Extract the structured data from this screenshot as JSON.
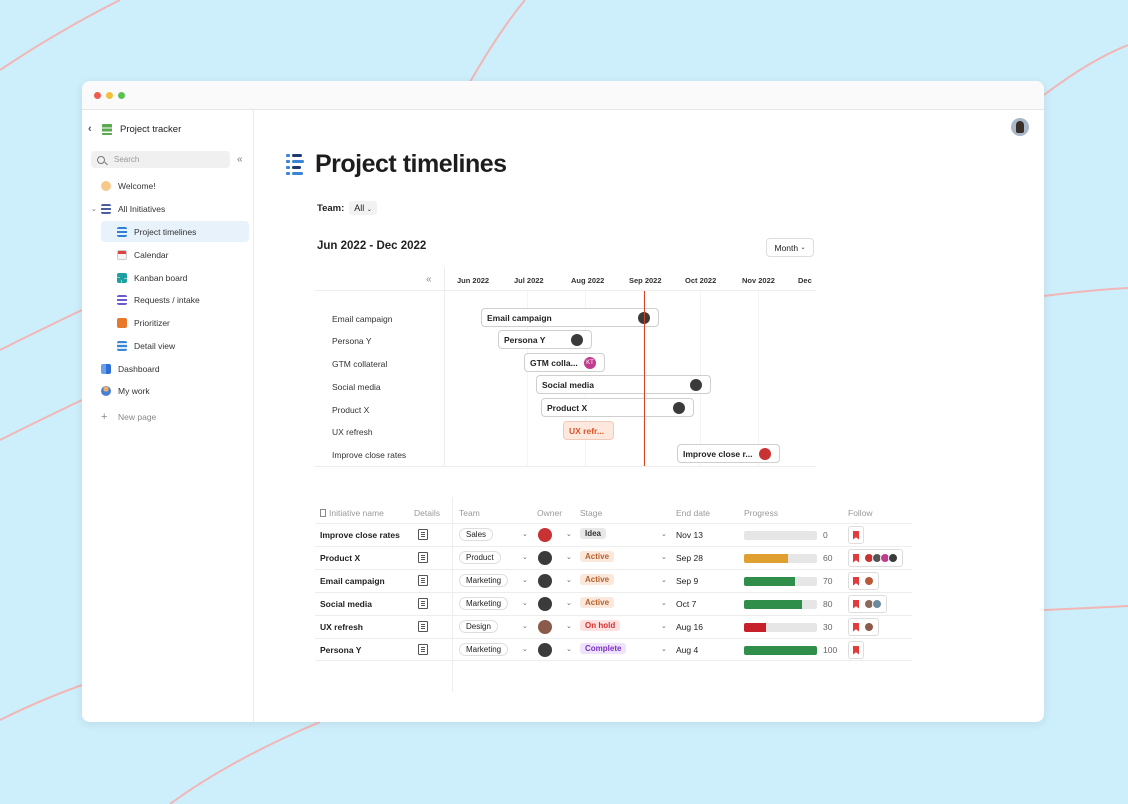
{
  "sidebar": {
    "title": "Project tracker",
    "search_placeholder": "Search",
    "items": [
      {
        "label": "Welcome!"
      },
      {
        "label": "All Initiatives"
      },
      {
        "label": "Project timelines"
      },
      {
        "label": "Calendar"
      },
      {
        "label": "Kanban board"
      },
      {
        "label": "Requests / intake"
      },
      {
        "label": "Prioritizer"
      },
      {
        "label": "Detail view"
      },
      {
        "label": "Dashboard"
      },
      {
        "label": "My work"
      },
      {
        "label": "New page"
      }
    ]
  },
  "page": {
    "title": "Project timelines",
    "team_label": "Team:",
    "team_value": "All",
    "range": "Jun 2022 - Dec 2022",
    "view_mode": "Month"
  },
  "timeline": {
    "months": [
      "Jun 2022",
      "Jul 2022",
      "Aug 2022",
      "Sep 2022",
      "Oct 2022",
      "Nov 2022",
      "Dec"
    ],
    "rows": [
      {
        "label": "Email campaign",
        "bar": "Email campaign"
      },
      {
        "label": "Persona Y",
        "bar": "Persona Y"
      },
      {
        "label": "GTM collateral",
        "bar": "GTM colla...",
        "owner_initials": "KT"
      },
      {
        "label": "Social media",
        "bar": "Social media"
      },
      {
        "label": "Product X",
        "bar": "Product X"
      },
      {
        "label": "UX refresh",
        "bar": "UX refr..."
      },
      {
        "label": "Improve close rates",
        "bar": "Improve close r..."
      }
    ]
  },
  "table": {
    "headers": {
      "name": "Initiative name",
      "details": "Details",
      "team": "Team",
      "owner": "Owner",
      "stage": "Stage",
      "end": "End date",
      "progress": "Progress",
      "follow": "Follow"
    },
    "rows": [
      {
        "name": "Improve close rates",
        "team": "Sales",
        "stage": "Idea",
        "end": "Nov 13",
        "progress": 0
      },
      {
        "name": "Product X",
        "team": "Product",
        "stage": "Active",
        "end": "Sep 28",
        "progress": 60
      },
      {
        "name": "Email campaign",
        "team": "Marketing",
        "stage": "Active",
        "end": "Sep 9",
        "progress": 70
      },
      {
        "name": "Social media",
        "team": "Marketing",
        "stage": "Active",
        "end": "Oct 7",
        "progress": 80
      },
      {
        "name": "UX refresh",
        "team": "Design",
        "stage": "On hold",
        "end": "Aug 16",
        "progress": 30
      },
      {
        "name": "Persona Y",
        "team": "Marketing",
        "stage": "Complete",
        "end": "Aug 4",
        "progress": 100
      }
    ]
  },
  "colors": {
    "background": "#cdeefb",
    "today_line": "#d4451f",
    "progress_orange": "#e0a030",
    "progress_green": "#2f8f4a",
    "progress_red": "#c8202a",
    "stage_active_bg": "#fbe8dc",
    "stage_active_fg": "#b8612c",
    "stage_onhold_bg": "#fde0e0",
    "stage_onhold_fg": "#d43030",
    "stage_complete_bg": "#efe3fb",
    "stage_complete_fg": "#7a32c0",
    "stage_idea_bg": "#e8e8e8"
  }
}
